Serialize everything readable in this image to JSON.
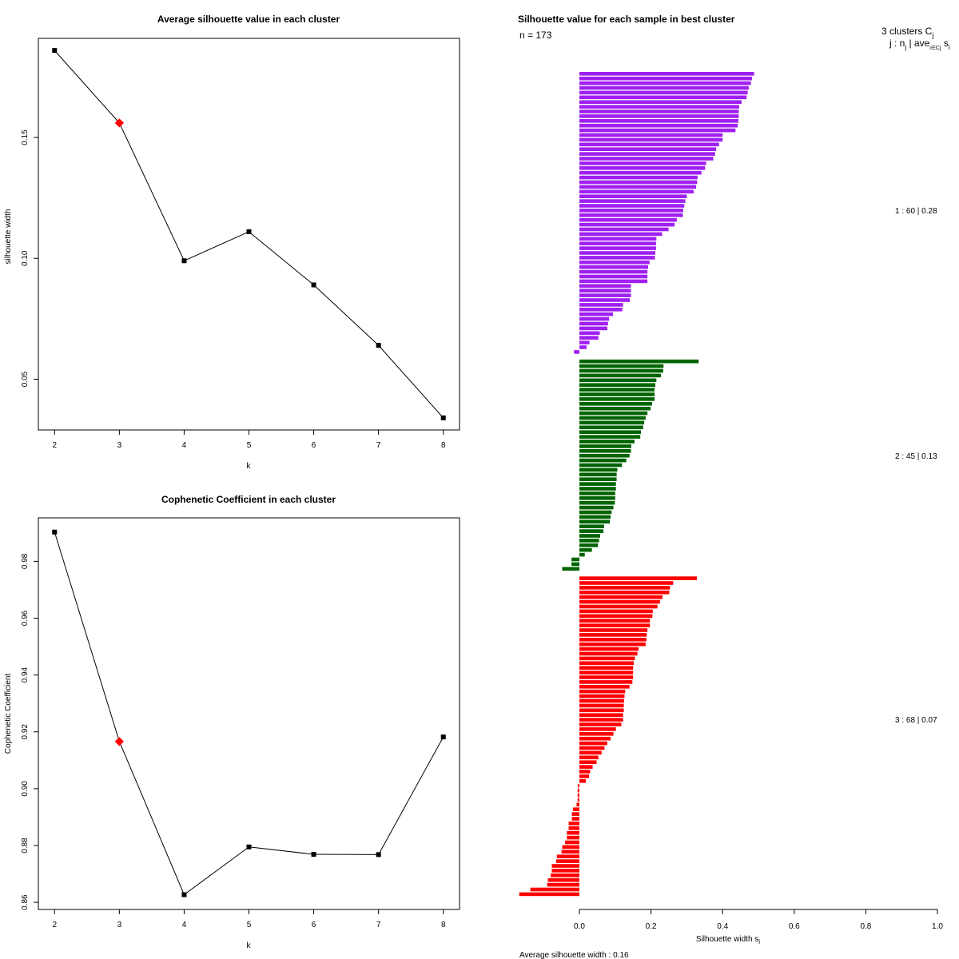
{
  "chart_data": [
    {
      "type": "line",
      "title": "Average silhouette value in each cluster",
      "xlabel": "k",
      "ylabel": "silhouette width",
      "x": [
        2,
        3,
        4,
        5,
        6,
        7,
        8
      ],
      "values": [
        0.186,
        0.156,
        0.099,
        0.111,
        0.089,
        0.064,
        0.034
      ],
      "highlight_index": 1,
      "highlight_color": "#ff0000",
      "xticks": [
        "2",
        "3",
        "4",
        "5",
        "6",
        "7",
        "8"
      ],
      "yticks": [
        "0.05",
        "0.10",
        "0.15"
      ],
      "xlim": [
        1.75,
        8.25
      ],
      "ylim": [
        0.029,
        0.191
      ],
      "grid": false
    },
    {
      "type": "line",
      "title": "Cophenetic Coefficient in each cluster",
      "xlabel": "k",
      "ylabel": "Cophenetic Coefficient",
      "x": [
        2,
        3,
        4,
        5,
        6,
        7,
        8
      ],
      "values": [
        0.9903,
        0.9166,
        0.8627,
        0.8795,
        0.8769,
        0.8768,
        0.9182
      ],
      "highlight_index": 1,
      "highlight_color": "#ff0000",
      "xticks": [
        "2",
        "3",
        "4",
        "5",
        "6",
        "7",
        "8"
      ],
      "yticks": [
        "0.86",
        "0.88",
        "0.90",
        "0.92",
        "0.94",
        "0.96",
        "0.98"
      ],
      "xlim": [
        1.75,
        8.25
      ],
      "ylim": [
        0.8575,
        0.9953
      ],
      "grid": false
    },
    {
      "type": "bar",
      "orientation": "horizontal",
      "title": "Silhouette value for each sample in best cluster",
      "n_label": "n = 173",
      "legend_title_line1": "3  clusters  C",
      "legend_title_sub1": "j",
      "legend_title_line2": "j :  n",
      "legend_title_sub2": "j",
      "legend_title_line2b": " | ave",
      "legend_title_sub3": "i∈Cj",
      "legend_title_line2c": "  s",
      "legend_title_sub4": "i",
      "xlabel": "Silhouette width s",
      "xlabel_sub": "i",
      "footer": "Average silhouette width :  0.16",
      "xticks": [
        "0.0",
        "0.2",
        "0.4",
        "0.6",
        "0.8",
        "1.0"
      ],
      "xlim": [
        -0.17,
        1.0
      ],
      "clusters": [
        {
          "label": "1 :  60  |  0.28",
          "color": "#a020f0",
          "values": [
            0.488,
            0.482,
            0.479,
            0.473,
            0.47,
            0.467,
            0.453,
            0.446,
            0.445,
            0.445,
            0.444,
            0.442,
            0.436,
            0.4,
            0.4,
            0.39,
            0.382,
            0.379,
            0.374,
            0.354,
            0.351,
            0.341,
            0.33,
            0.329,
            0.326,
            0.319,
            0.3,
            0.296,
            0.293,
            0.29,
            0.289,
            0.272,
            0.266,
            0.249,
            0.231,
            0.215,
            0.214,
            0.214,
            0.212,
            0.211,
            0.196,
            0.192,
            0.19,
            0.19,
            0.19,
            0.144,
            0.144,
            0.144,
            0.141,
            0.122,
            0.12,
            0.094,
            0.083,
            0.08,
            0.078,
            0.057,
            0.053,
            0.028,
            0.02,
            -0.015
          ]
        },
        {
          "label": "2 :  45  |  0.13",
          "color": "#006400",
          "values": [
            0.333,
            0.235,
            0.234,
            0.228,
            0.215,
            0.212,
            0.21,
            0.21,
            0.21,
            0.203,
            0.199,
            0.19,
            0.185,
            0.181,
            0.178,
            0.172,
            0.17,
            0.154,
            0.145,
            0.144,
            0.14,
            0.131,
            0.119,
            0.106,
            0.104,
            0.104,
            0.102,
            0.102,
            0.1,
            0.1,
            0.099,
            0.095,
            0.09,
            0.087,
            0.085,
            0.069,
            0.067,
            0.058,
            0.055,
            0.052,
            0.035,
            0.015,
            -0.022,
            -0.022,
            -0.048
          ]
        },
        {
          "label": "3 :  68  |  0.07",
          "color": "#ff0000",
          "values": [
            0.328,
            0.262,
            0.253,
            0.251,
            0.232,
            0.225,
            0.218,
            0.205,
            0.204,
            0.197,
            0.197,
            0.19,
            0.188,
            0.187,
            0.185,
            0.165,
            0.162,
            0.155,
            0.152,
            0.15,
            0.15,
            0.15,
            0.148,
            0.14,
            0.128,
            0.126,
            0.125,
            0.124,
            0.124,
            0.122,
            0.122,
            0.117,
            0.102,
            0.095,
            0.087,
            0.078,
            0.07,
            0.062,
            0.053,
            0.048,
            0.037,
            0.03,
            0.027,
            0.018,
            -0.004,
            -0.005,
            -0.005,
            -0.005,
            -0.008,
            -0.018,
            -0.021,
            -0.021,
            -0.03,
            -0.03,
            -0.035,
            -0.035,
            -0.04,
            -0.048,
            -0.05,
            -0.063,
            -0.065,
            -0.077,
            -0.077,
            -0.08,
            -0.088,
            -0.09,
            -0.137,
            -0.168
          ]
        }
      ]
    }
  ]
}
